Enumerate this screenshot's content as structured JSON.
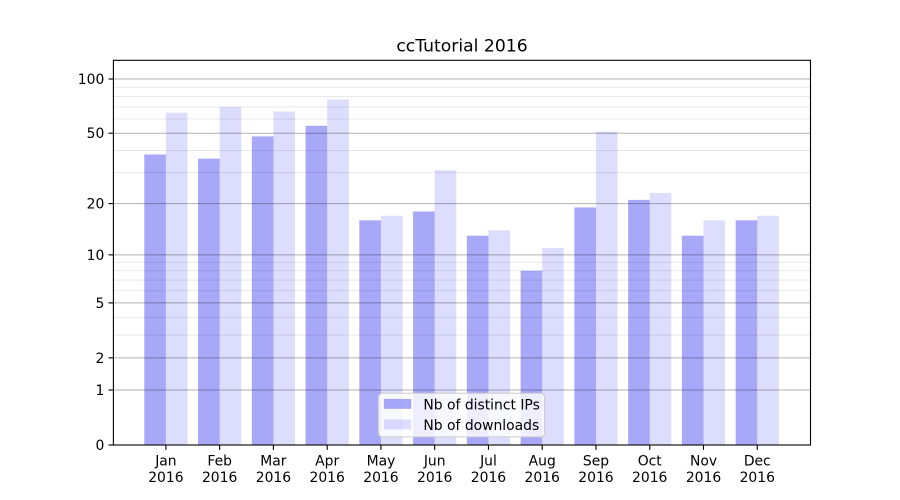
{
  "chart_data": {
    "type": "bar",
    "title": "ccTutorial 2016",
    "categories": [
      "Jan\n2016",
      "Feb\n2016",
      "Mar\n2016",
      "Apr\n2016",
      "May\n2016",
      "Jun\n2016",
      "Jul\n2016",
      "Aug\n2016",
      "Sep\n2016",
      "Oct\n2016",
      "Nov\n2016",
      "Dec\n2016"
    ],
    "series": [
      {
        "name": "Nb of distinct IPs",
        "values": [
          38,
          36,
          48,
          55,
          16,
          18,
          13,
          8,
          19,
          21,
          13,
          16
        ],
        "color": "#6e6ef5",
        "opacity": 0.6
      },
      {
        "name": "Nb of downloads",
        "values": [
          65,
          70,
          66,
          77,
          17,
          31,
          14,
          11,
          51,
          23,
          16,
          17
        ],
        "color": "#6e6ef5",
        "opacity": 0.23
      }
    ],
    "xlabel": "",
    "ylabel": "",
    "yscale": "symlog-log1p",
    "ylim": [
      0,
      127
    ],
    "yticks_major": [
      0,
      1,
      2,
      5,
      10,
      20,
      50,
      100
    ],
    "yticks_minor": [
      3,
      4,
      6,
      7,
      8,
      9,
      30,
      40,
      60,
      70,
      80,
      90
    ],
    "grid": "major+minor",
    "legend_position": "lower center",
    "colors": {
      "major_gridline": "rgba(0,0,0,0.30)",
      "minor_gridline": "rgba(0,0,0,0.09)",
      "spine": "#000000",
      "text": "#000000",
      "legend_border": "#cccccc",
      "legend_background": "rgba(255,255,255,0.8)"
    }
  }
}
